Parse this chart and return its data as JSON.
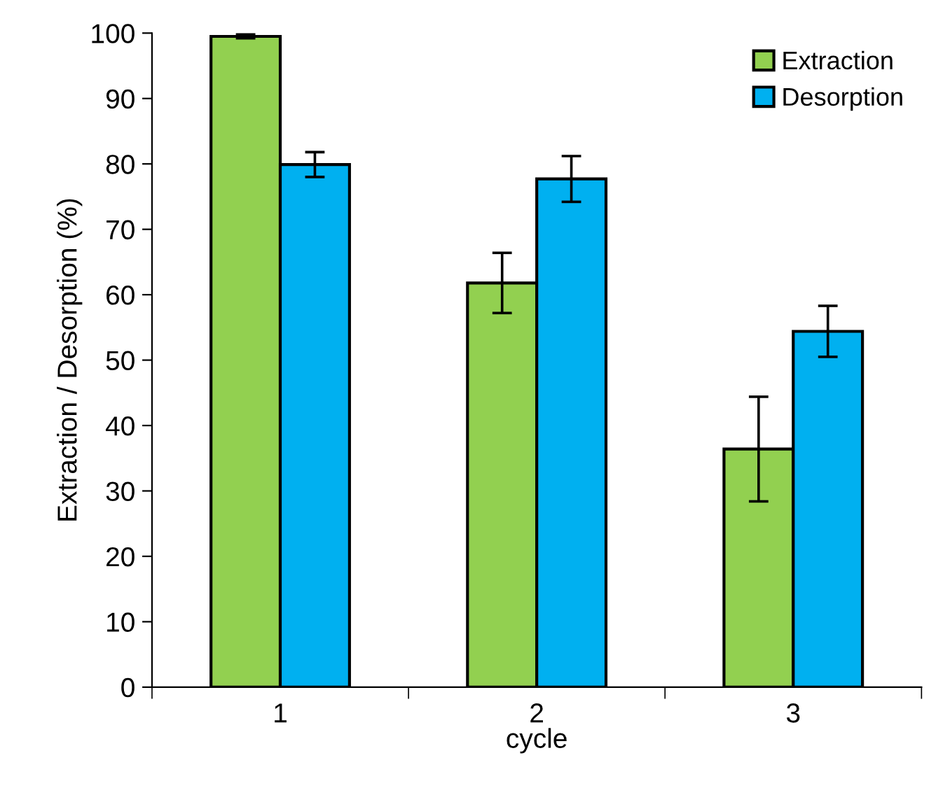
{
  "chart_data": {
    "type": "bar",
    "xlabel": "cycle",
    "ylabel": "Extraction / Desorption (%)",
    "categories": [
      "1",
      "2",
      "3"
    ],
    "series": [
      {
        "name": "Extraction",
        "color": "#92d050",
        "values": [
          99.5,
          61.8,
          36.4
        ],
        "errors": [
          0.3,
          4.6,
          8
        ]
      },
      {
        "name": "Desorption",
        "color": "#00b0f0",
        "values": [
          79.9,
          77.7,
          54.4
        ],
        "errors": [
          1.9,
          3.5,
          3.9
        ]
      }
    ],
    "ylim": [
      0,
      100
    ],
    "yticks": [
      0,
      10,
      20,
      30,
      40,
      50,
      60,
      70,
      80,
      90,
      100
    ],
    "grid": false,
    "legend": "top right"
  }
}
